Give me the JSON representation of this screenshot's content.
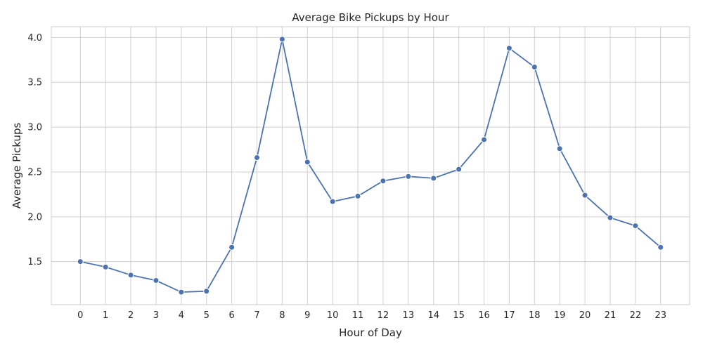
{
  "chart_data": {
    "type": "line",
    "title": "Average Bike Pickups by Hour",
    "xlabel": "Hour of Day",
    "ylabel": "Average Pickups",
    "x": [
      0,
      1,
      2,
      3,
      4,
      5,
      6,
      7,
      8,
      9,
      10,
      11,
      12,
      13,
      14,
      15,
      16,
      17,
      18,
      19,
      20,
      21,
      22,
      23
    ],
    "x_tick_labels": [
      "0",
      "1",
      "2",
      "3",
      "4",
      "5",
      "6",
      "7",
      "8",
      "9",
      "10",
      "11",
      "12",
      "13",
      "14",
      "15",
      "16",
      "17",
      "18",
      "19",
      "20",
      "21",
      "22",
      "23"
    ],
    "series": [
      {
        "values": [
          1.5,
          1.44,
          1.35,
          1.29,
          1.16,
          1.17,
          1.66,
          2.66,
          3.98,
          2.61,
          2.17,
          2.23,
          2.4,
          2.45,
          2.43,
          2.53,
          2.86,
          3.88,
          3.67,
          2.76,
          2.24,
          1.99,
          1.9,
          1.66
        ],
        "color": "#4c72b0"
      }
    ],
    "y_ticks": [
      1.5,
      2.0,
      2.5,
      3.0,
      3.5,
      4.0
    ],
    "y_tick_labels": [
      "1.5",
      "2.0",
      "2.5",
      "3.0",
      "3.5",
      "4.0"
    ],
    "xlim": [
      -1.15,
      24.15
    ],
    "ylim": [
      1.02,
      4.12
    ],
    "grid": true,
    "marker": "circle"
  }
}
